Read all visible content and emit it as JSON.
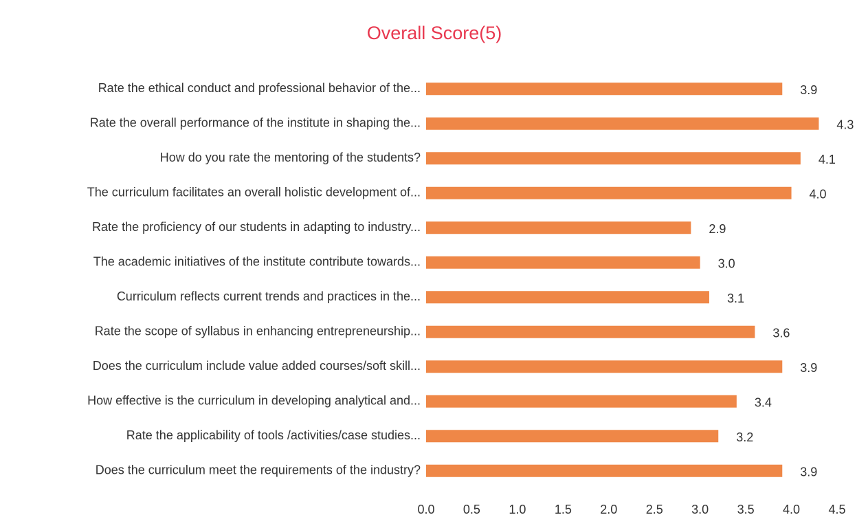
{
  "chart_data": {
    "type": "hbar",
    "title": "Overall Score(5)",
    "categories": [
      "Rate the ethical conduct and professional behavior of the...",
      "Rate the overall performance of the institute in shaping the...",
      "How do you rate the mentoring of the students?",
      "The curriculum facilitates an overall holistic development of...",
      "Rate the proficiency of our students in adapting to industry...",
      "The academic initiatives of the institute contribute towards...",
      "Curriculum reflects current trends and practices in the...",
      "Rate the scope of syllabus in enhancing entrepreneurship...",
      "Does the curriculum include value added courses/soft skill...",
      "How effective is the curriculum in developing analytical and...",
      "Rate the applicability of tools /activities/case studies...",
      "Does the curriculum meet the requirements of the industry?"
    ],
    "values": [
      3.9,
      4.3,
      4.1,
      4.0,
      2.9,
      3.0,
      3.1,
      3.6,
      3.9,
      3.4,
      3.2,
      3.9
    ],
    "value_labels": [
      "3.9",
      "4.3",
      "4.1",
      "4.0",
      "2.9",
      "3.0",
      "3.1",
      "3.6",
      "3.9",
      "3.4",
      "3.2",
      "3.9"
    ],
    "color": "#ef8747",
    "xlim": [
      0,
      4.5
    ],
    "xticks": [
      {
        "value": 0,
        "label": "0.0"
      },
      {
        "value": 0.5,
        "label": "0.5"
      },
      {
        "value": 1,
        "label": "1.0"
      },
      {
        "value": 1.5,
        "label": "1.5"
      },
      {
        "value": 2,
        "label": "2.0"
      },
      {
        "value": 2.5,
        "label": "2.5"
      },
      {
        "value": 3,
        "label": "3.0"
      },
      {
        "value": 3.5,
        "label": "3.5"
      },
      {
        "value": 4,
        "label": "4.0"
      },
      {
        "value": 4.5,
        "label": "4.5"
      }
    ],
    "grid": false
  }
}
